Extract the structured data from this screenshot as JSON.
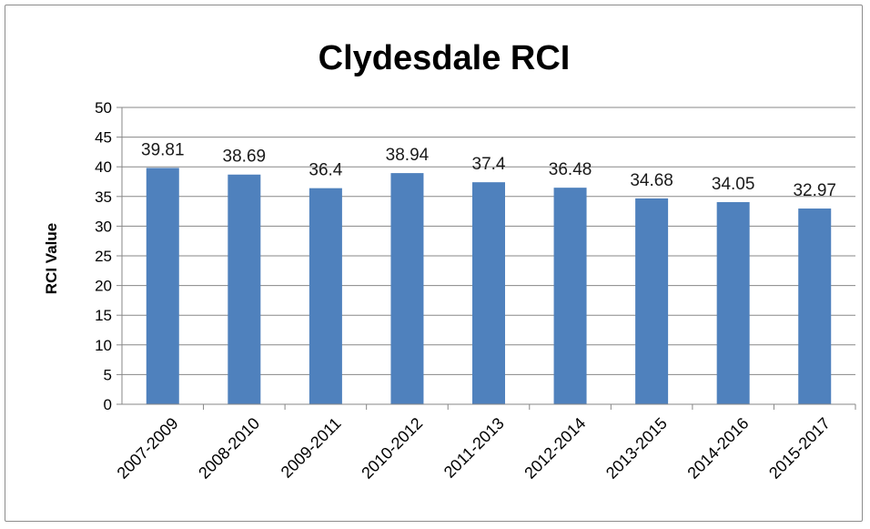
{
  "chart_data": {
    "type": "bar",
    "title": "Clydesdale RCI",
    "xlabel": "",
    "ylabel": "RCI Value",
    "categories": [
      "2007-2009",
      "2008-2010",
      "2009-2011",
      "2010-2012",
      "2011-2013",
      "2012-2014",
      "2013-2015",
      "2014-2016",
      "2015-2017"
    ],
    "values": [
      39.81,
      38.69,
      36.4,
      38.94,
      37.4,
      36.48,
      34.68,
      34.05,
      32.97
    ],
    "value_labels": [
      "39.81",
      "38.69",
      "36.4",
      "38.94",
      "37.4",
      "36.48",
      "34.68",
      "34.05",
      "32.97"
    ],
    "ylim": [
      0,
      50
    ],
    "yticks": [
      0,
      5,
      10,
      15,
      20,
      25,
      30,
      35,
      40,
      45,
      50
    ],
    "grid": true,
    "legend": "none",
    "bar_color": "#4f81bd",
    "grid_color": "#878787"
  }
}
